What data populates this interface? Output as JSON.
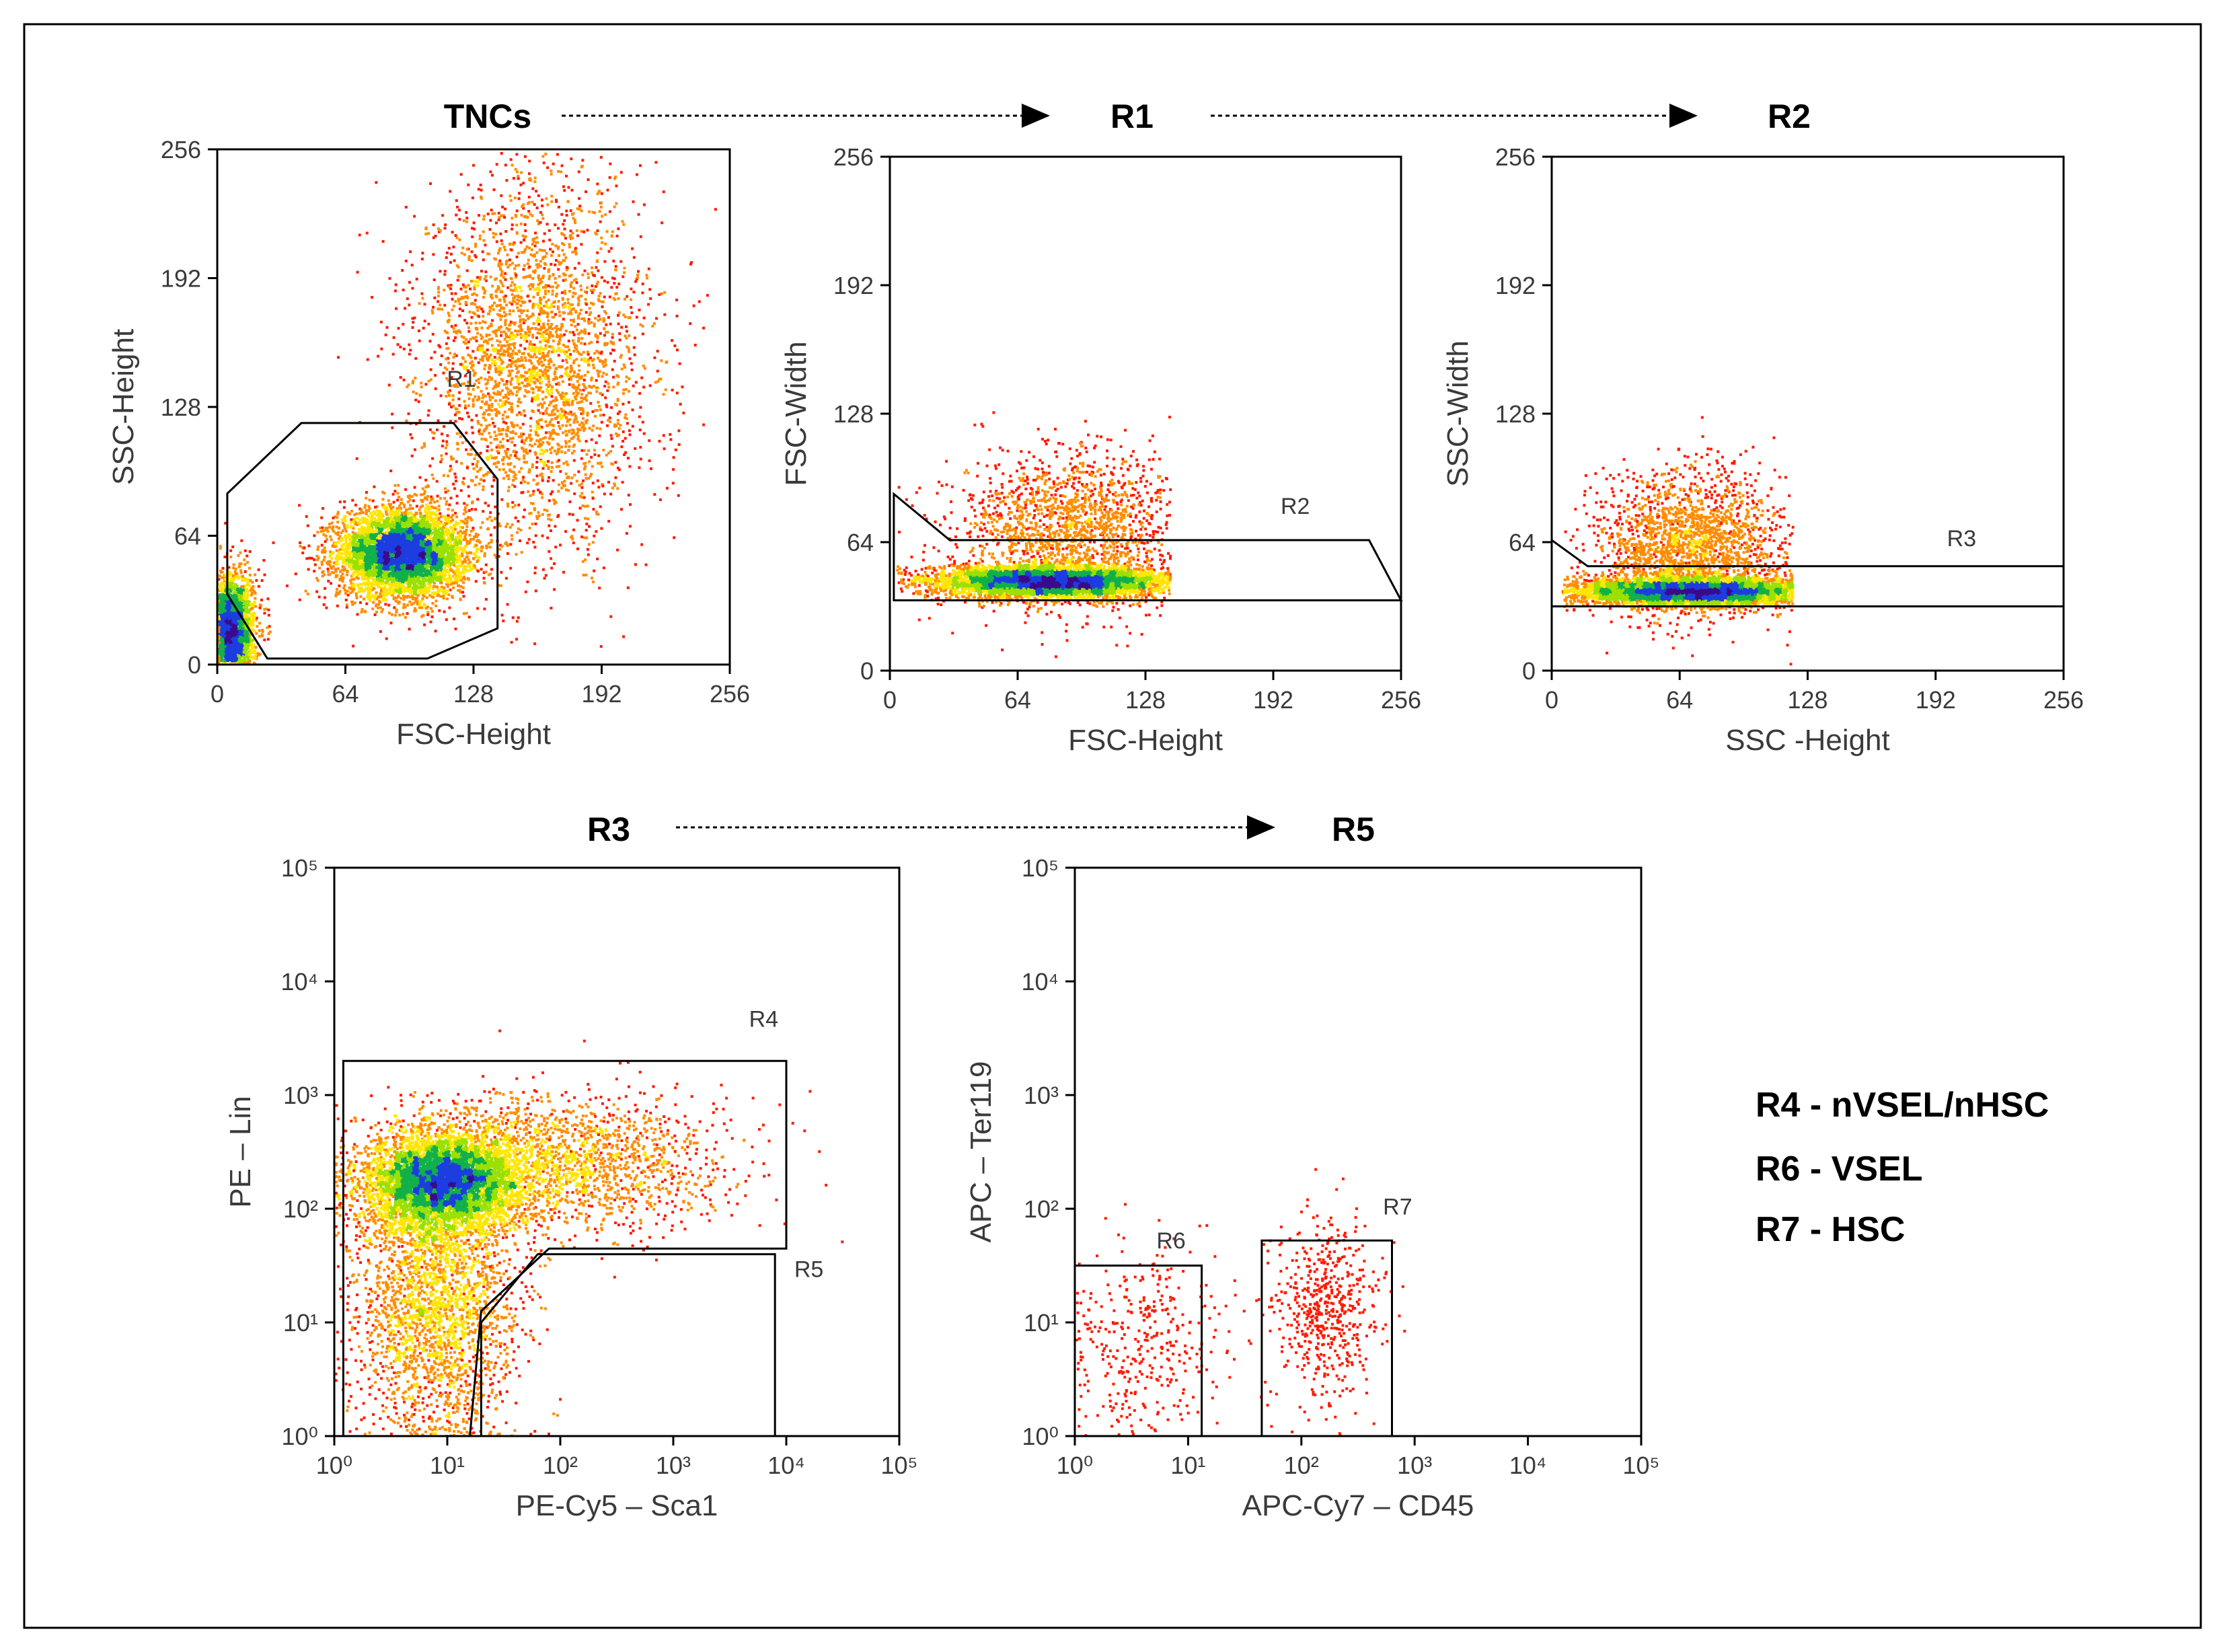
{
  "colors": {
    "low": "#ff1a00",
    "mid1": "#ff8c00",
    "mid2": "#ffe500",
    "mid3": "#9be000",
    "mid4": "#12b04a",
    "high1": "#1c3de0",
    "high2": "#3a0a8c",
    "frame": "#000000",
    "text": "#3a3a3a"
  },
  "flow": {
    "top": [
      {
        "label": "TNCs"
      },
      {
        "label": "R1"
      },
      {
        "label": "R2"
      }
    ],
    "bottom": [
      {
        "label": "R3"
      },
      {
        "label": "R5"
      }
    ]
  },
  "legend": [
    {
      "text": "R4 - nVSEL/nHSC"
    },
    {
      "text": "R6 - VSEL"
    },
    {
      "text": "R7 - HSC"
    }
  ],
  "chart_data": [
    {
      "type": "scatter",
      "subtype": "flow cytometry density plot",
      "title": "TNCs",
      "xlabel": "FSC-Height",
      "ylabel": "SSC-Height",
      "xscale": "linear",
      "yscale": "linear",
      "xlim": [
        0,
        256
      ],
      "ylim": [
        0,
        256
      ],
      "xticks": [
        "0",
        "64",
        "128",
        "192",
        "256"
      ],
      "yticks": [
        "0",
        "64",
        "128",
        "192",
        "256"
      ],
      "populations": [
        {
          "name": "main",
          "cx": 92,
          "cy": 56,
          "sx": 16,
          "sy": 11,
          "weight": 1.0
        },
        {
          "name": "debris",
          "cx": 6,
          "cy": 18,
          "sx": 6,
          "sy": 14,
          "weight": 0.55
        },
        {
          "name": "granulocytes",
          "cx": 158,
          "cy": 150,
          "sx": 28,
          "sy": 45,
          "weight": 0.6
        }
      ],
      "gates": [
        {
          "name": "R1",
          "label_at": [
            122,
            138
          ],
          "polygon": [
            [
              5,
              85
            ],
            [
              42,
              120
            ],
            [
              118,
              120
            ],
            [
              140,
              92
            ],
            [
              140,
              18
            ],
            [
              105,
              3
            ],
            [
              25,
              3
            ],
            [
              5,
              35
            ]
          ]
        }
      ]
    },
    {
      "type": "scatter",
      "subtype": "flow cytometry density plot",
      "title": "R1",
      "xlabel": "FSC-Height",
      "ylabel": "FSC-Width",
      "xscale": "linear",
      "yscale": "linear",
      "xlim": [
        0,
        256
      ],
      "ylim": [
        0,
        256
      ],
      "xticks": [
        "0",
        "64",
        "128",
        "192",
        "256"
      ],
      "yticks": [
        "0",
        "64",
        "128",
        "192",
        "256"
      ],
      "populations": [
        {
          "name": "singlets",
          "cx": 80,
          "cy": 45,
          "sx": 30,
          "sy": 4,
          "xrange": [
            3,
            140
          ],
          "weight": 1.0
        },
        {
          "name": "scatter",
          "cx": 90,
          "cy": 70,
          "sx": 28,
          "sy": 20,
          "xrange": [
            3,
            140
          ],
          "weight": 0.35
        }
      ],
      "gates": [
        {
          "name": "R2",
          "label_at": [
            203,
            78
          ],
          "polygon": [
            [
              2,
              88
            ],
            [
              30,
              65
            ],
            [
              240,
              65
            ],
            [
              256,
              35
            ],
            [
              2,
              35
            ]
          ]
        }
      ]
    },
    {
      "type": "scatter",
      "subtype": "flow cytometry density plot",
      "title": "R2",
      "xlabel": "SSC -Height",
      "ylabel": "SSC-Width",
      "xscale": "linear",
      "yscale": "linear",
      "xlim": [
        0,
        256
      ],
      "ylim": [
        0,
        256
      ],
      "xticks": [
        "0",
        "64",
        "128",
        "192",
        "256"
      ],
      "yticks": [
        "0",
        "64",
        "128",
        "192",
        "256"
      ],
      "populations": [
        {
          "name": "singlets",
          "cx": 70,
          "cy": 40,
          "sx": 30,
          "sy": 3.5,
          "xrange": [
            5,
            120
          ],
          "weight": 1.0
        },
        {
          "name": "scatter",
          "cx": 70,
          "cy": 62,
          "sx": 24,
          "sy": 18,
          "xrange": [
            5,
            120
          ],
          "weight": 0.4
        }
      ],
      "gates": [
        {
          "name": "R3",
          "label_at": [
            205,
            62
          ],
          "polygon": [
            [
              0,
              65
            ],
            [
              18,
              52
            ],
            [
              256,
              52
            ],
            [
              256,
              32
            ],
            [
              0,
              32
            ]
          ]
        }
      ]
    },
    {
      "type": "scatter",
      "subtype": "flow cytometry density plot",
      "title": "R3",
      "xlabel": "PE-Cy5 – Sca1",
      "ylabel": "PE – Lin",
      "xscale": "log",
      "yscale": "log",
      "xlim": [
        1,
        100000
      ],
      "ylim": [
        1,
        100000
      ],
      "xticks": [
        "10⁰",
        "10¹",
        "10²",
        "10³",
        "10⁴",
        "10⁵"
      ],
      "yticks": [
        "10⁰",
        "10¹",
        "10²",
        "10³",
        "10⁴",
        "10⁵"
      ],
      "populations": [
        {
          "name": "lin-high",
          "cx_log": 0.95,
          "cy_log": 2.25,
          "sx_log": 0.35,
          "sy_log": 0.22,
          "weight": 1.0
        },
        {
          "name": "lin-tail",
          "cx_log": 0.9,
          "cy_log": 1.2,
          "sx_log": 0.35,
          "sy_log": 0.6,
          "weight": 0.5
        },
        {
          "name": "sca1-tail",
          "cx_log": 2.0,
          "cy_log": 2.4,
          "sx_log": 0.7,
          "sy_log": 0.3,
          "weight": 0.35
        }
      ],
      "gates": [
        {
          "name": "R4",
          "label_at_log": [
            3.8,
            3.6
          ],
          "polygon_log": [
            [
              0.08,
              3.3
            ],
            [
              4.0,
              3.3
            ],
            [
              4.0,
              1.65
            ],
            [
              1.9,
              1.65
            ],
            [
              1.3,
              1.1
            ],
            [
              1.2,
              0.0
            ],
            [
              0.08,
              0.0
            ]
          ]
        },
        {
          "name": "R5",
          "label_at_log": [
            4.2,
            1.4
          ],
          "polygon_log": [
            [
              1.3,
              0.0
            ],
            [
              1.3,
              1.0
            ],
            [
              1.8,
              1.6
            ],
            [
              3.9,
              1.6
            ],
            [
              3.9,
              0.0
            ]
          ]
        }
      ]
    },
    {
      "type": "scatter",
      "subtype": "flow cytometry dot plot",
      "title": "R5",
      "xlabel": "APC-Cy7 – CD45",
      "ylabel": "APC – Ter119",
      "xscale": "log",
      "yscale": "log",
      "xlim": [
        1,
        100000
      ],
      "ylim": [
        1,
        100000
      ],
      "xticks": [
        "10⁰",
        "10¹",
        "10²",
        "10³",
        "10⁴",
        "10⁵"
      ],
      "yticks": [
        "10⁰",
        "10¹",
        "10²",
        "10³",
        "10⁴",
        "10⁵"
      ],
      "populations": [
        {
          "name": "CD45-",
          "cx_log": 0.6,
          "cy_log": 0.8,
          "sx_log": 0.35,
          "sy_log": 0.45,
          "weight": 0.4
        },
        {
          "name": "CD45+",
          "cx_log": 2.2,
          "cy_log": 1.1,
          "sx_log": 0.25,
          "sy_log": 0.4,
          "weight": 0.6
        }
      ],
      "gates": [
        {
          "name": "R6",
          "label_at_log": [
            0.85,
            1.65
          ],
          "polygon_log": [
            [
              0.0,
              0.0
            ],
            [
              0.0,
              1.5
            ],
            [
              1.12,
              1.5
            ],
            [
              1.12,
              0.0
            ]
          ]
        },
        {
          "name": "R7",
          "label_at_log": [
            2.85,
            1.95
          ],
          "polygon_log": [
            [
              1.65,
              0.0
            ],
            [
              1.65,
              1.72
            ],
            [
              2.8,
              1.72
            ],
            [
              2.8,
              0.0
            ]
          ]
        }
      ]
    }
  ]
}
